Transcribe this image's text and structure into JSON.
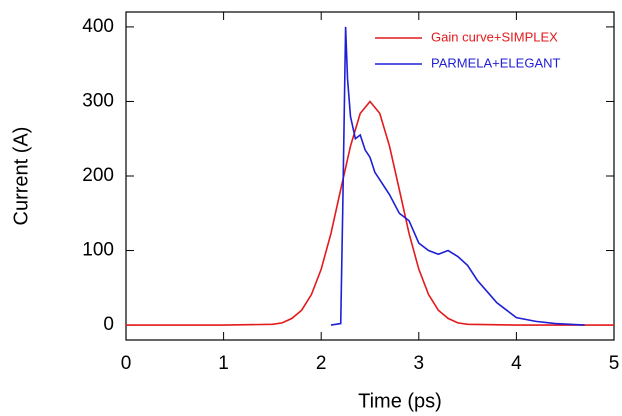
{
  "chart_data": {
    "type": "line",
    "xlabel": "Time (ps)",
    "ylabel": "Current (A)",
    "xlim": [
      0,
      5
    ],
    "ylim": [
      -20,
      420
    ],
    "xticks": [
      0,
      1,
      2,
      3,
      4,
      5
    ],
    "yticks": [
      0,
      100,
      200,
      300,
      400
    ],
    "legend": "upper right",
    "series": [
      {
        "name": "Gain curve+SIMPLEX",
        "color": "#e31a1c",
        "x": [
          0,
          1,
          1.5,
          1.6,
          1.7,
          1.8,
          1.9,
          2.0,
          2.1,
          2.2,
          2.3,
          2.4,
          2.5,
          2.6,
          2.7,
          2.8,
          2.9,
          3.0,
          3.1,
          3.2,
          3.3,
          3.4,
          3.5,
          4,
          5
        ],
        "values": [
          0,
          0,
          1,
          3,
          9,
          20,
          41,
          75,
          123,
          182,
          240,
          284,
          300,
          284,
          240,
          182,
          123,
          75,
          41,
          20,
          9,
          3,
          1,
          0,
          0
        ]
      },
      {
        "name": "PARMELA+ELEGANT",
        "color": "#1f1fd6",
        "x": [
          2.1,
          2.2,
          2.22,
          2.25,
          2.27,
          2.3,
          2.35,
          2.4,
          2.45,
          2.5,
          2.55,
          2.6,
          2.7,
          2.8,
          2.9,
          3.0,
          3.1,
          3.2,
          3.3,
          3.4,
          3.5,
          3.6,
          3.7,
          3.8,
          3.9,
          4.0,
          4.2,
          4.4,
          4.7
        ],
        "values": [
          0,
          2,
          150,
          400,
          330,
          280,
          250,
          255,
          235,
          225,
          205,
          195,
          175,
          150,
          140,
          110,
          100,
          95,
          100,
          92,
          80,
          60,
          45,
          30,
          20,
          10,
          5,
          2,
          0
        ]
      }
    ]
  }
}
